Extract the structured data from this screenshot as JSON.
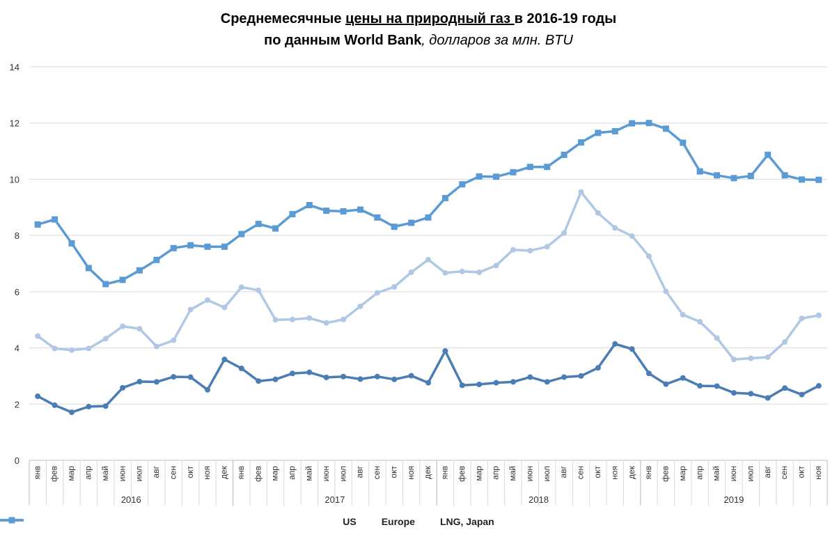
{
  "title": {
    "line1_pre": "Среднемесячные ",
    "line1_underlined": "цены на природный газ ",
    "line1_post": "в 2016-19 годы",
    "line2_main": "по данным World Bank",
    "line2_unit": ", долларов за млн. BTU"
  },
  "chart_data": {
    "type": "line",
    "title": "Среднемесячные цены на природный газ в 2016-19 годы по данным World Bank, долларов за млн. BTU",
    "xlabel": "",
    "ylabel": "",
    "ylim": [
      0,
      14
    ],
    "yticks": [
      0,
      2,
      4,
      6,
      8,
      10,
      12,
      14
    ],
    "grid": true,
    "legend_position": "bottom",
    "categories": [
      "янв",
      "фев",
      "мар",
      "апр",
      "май",
      "июн",
      "июл",
      "авг",
      "сен",
      "окт",
      "ноя",
      "дек",
      "янв",
      "фев",
      "мар",
      "апр",
      "май",
      "июн",
      "июл",
      "авг",
      "сен",
      "окт",
      "ноя",
      "дек",
      "янв",
      "фев",
      "мар",
      "апр",
      "май",
      "июн",
      "июл",
      "авг",
      "сен",
      "окт",
      "ноя",
      "дек",
      "янв",
      "фев",
      "мар",
      "апр",
      "май",
      "июн",
      "июл",
      "авг",
      "сен",
      "окт",
      "ноя"
    ],
    "year_groups": [
      {
        "label": "2016",
        "count": 12
      },
      {
        "label": "2017",
        "count": 12
      },
      {
        "label": "2018",
        "count": 12
      },
      {
        "label": "2019",
        "count": 11
      }
    ],
    "series": [
      {
        "name": "US",
        "color": "#4a7db3",
        "marker": "circle",
        "values": [
          2.28,
          1.96,
          1.71,
          1.91,
          1.93,
          2.58,
          2.8,
          2.79,
          2.97,
          2.96,
          2.51,
          3.59,
          3.27,
          2.82,
          2.88,
          3.09,
          3.13,
          2.95,
          2.98,
          2.89,
          2.98,
          2.88,
          3.01,
          2.76,
          3.89,
          2.67,
          2.7,
          2.76,
          2.79,
          2.96,
          2.79,
          2.96,
          3.0,
          3.29,
          4.14,
          3.96,
          3.09,
          2.71,
          2.93,
          2.65,
          2.64,
          2.4,
          2.37,
          2.22,
          2.57,
          2.34,
          2.65
        ]
      },
      {
        "name": "Europe",
        "color": "#b0c8e4",
        "marker": "circle",
        "values": [
          4.42,
          3.98,
          3.92,
          3.98,
          4.33,
          4.77,
          4.68,
          4.05,
          4.27,
          5.36,
          5.7,
          5.44,
          6.16,
          6.05,
          5.0,
          5.01,
          5.06,
          4.89,
          5.01,
          5.48,
          5.96,
          6.17,
          6.69,
          7.14,
          6.67,
          6.72,
          6.69,
          6.93,
          7.49,
          7.46,
          7.6,
          8.09,
          9.55,
          8.8,
          8.27,
          7.98,
          7.26,
          6.01,
          5.18,
          4.93,
          4.35,
          3.59,
          3.63,
          3.67,
          4.21,
          5.05,
          5.16
        ]
      },
      {
        "name": "LNG, Japan",
        "color": "#5b9bd5",
        "marker": "square",
        "values": [
          8.39,
          8.57,
          7.72,
          6.84,
          6.27,
          6.42,
          6.76,
          7.13,
          7.55,
          7.65,
          7.6,
          7.6,
          8.05,
          8.41,
          8.25,
          8.76,
          9.08,
          8.88,
          8.86,
          8.92,
          8.64,
          8.31,
          8.45,
          8.64,
          9.33,
          9.82,
          10.1,
          10.09,
          10.25,
          10.44,
          10.44,
          10.87,
          11.31,
          11.65,
          11.71,
          11.99,
          12.0,
          11.8,
          11.3,
          10.28,
          10.14,
          10.04,
          10.12,
          10.87,
          10.14,
          9.99,
          9.98
        ]
      }
    ]
  }
}
